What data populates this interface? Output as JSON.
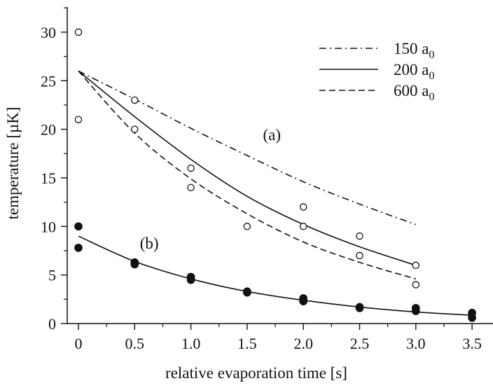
{
  "chart_data": {
    "type": "scatter",
    "title": "",
    "xlabel": "relative evaporation time [s]",
    "ylabel": "temperature [µK]",
    "xlim": [
      -0.12,
      3.65
    ],
    "ylim": [
      0,
      32.5
    ],
    "xticks": [
      0,
      0.5,
      1.0,
      1.5,
      2.0,
      2.5,
      3.0,
      3.5
    ],
    "xtick_labels": [
      "0",
      "0.5",
      "1.0",
      "1.5",
      "2.0",
      "2.5",
      "3.0",
      "3.5"
    ],
    "yticks": [
      0,
      5,
      10,
      15,
      20,
      25,
      30
    ],
    "ytick_labels": [
      "0",
      "5",
      "10",
      "15",
      "20",
      "25",
      "30"
    ],
    "grid": false,
    "legend_position": "top-right",
    "legend": [
      {
        "label": "150 a",
        "sub": "0",
        "style": "dash-dot"
      },
      {
        "label": "200 a",
        "sub": "0",
        "style": "solid"
      },
      {
        "label": "600 a",
        "sub": "0",
        "style": "dashed"
      }
    ],
    "annotations": [
      {
        "text": "(a)",
        "x": 1.72,
        "y": 18.9
      },
      {
        "text": "(b)",
        "x": 0.63,
        "y": 7.7
      }
    ],
    "scatter": [
      {
        "marker": "open-circle",
        "x": [
          0,
          0,
          0.5,
          0.5,
          1.0,
          1.0,
          1.5,
          2.0,
          2.0,
          2.5,
          2.5,
          3.0,
          3.0
        ],
        "y": [
          30,
          21,
          23,
          20,
          16,
          14,
          10,
          12,
          10,
          9,
          7,
          6,
          4
        ]
      },
      {
        "marker": "filled-circle",
        "x": [
          0,
          0,
          0.5,
          0.5,
          1.0,
          1.0,
          1.5,
          1.5,
          2.0,
          2.0,
          2.5,
          2.5,
          3.0,
          3.0,
          3.5,
          3.5
        ],
        "y": [
          10,
          7.8,
          6.3,
          6.1,
          4.8,
          4.5,
          3.3,
          3.2,
          2.6,
          2.3,
          1.7,
          1.6,
          1.6,
          1.3,
          1.1,
          0.6
        ]
      }
    ],
    "curves": [
      {
        "style": "dash-dot",
        "x": [
          0,
          0.5,
          1.0,
          1.5,
          2.0,
          2.5,
          3.0
        ],
        "y": [
          26,
          23.1,
          20.1,
          17.3,
          14.6,
          12.3,
          10.2
        ]
      },
      {
        "style": "solid",
        "x": [
          0,
          0.5,
          1.0,
          1.5,
          2.0,
          2.5,
          3.0
        ],
        "y": [
          26,
          21.3,
          16.9,
          13.1,
          10.2,
          7.9,
          6.0
        ]
      },
      {
        "style": "dashed",
        "x": [
          0,
          0.5,
          1.0,
          1.5,
          2.0,
          2.5,
          3.0
        ],
        "y": [
          26,
          19.6,
          14.9,
          11.3,
          8.4,
          6.3,
          4.6
        ]
      },
      {
        "style": "solid",
        "x": [
          0,
          0.5,
          1.0,
          1.5,
          2.0,
          2.5,
          3.0,
          3.5
        ],
        "y": [
          9.0,
          6.4,
          4.6,
          3.3,
          2.4,
          1.7,
          1.2,
          0.85
        ]
      }
    ]
  }
}
